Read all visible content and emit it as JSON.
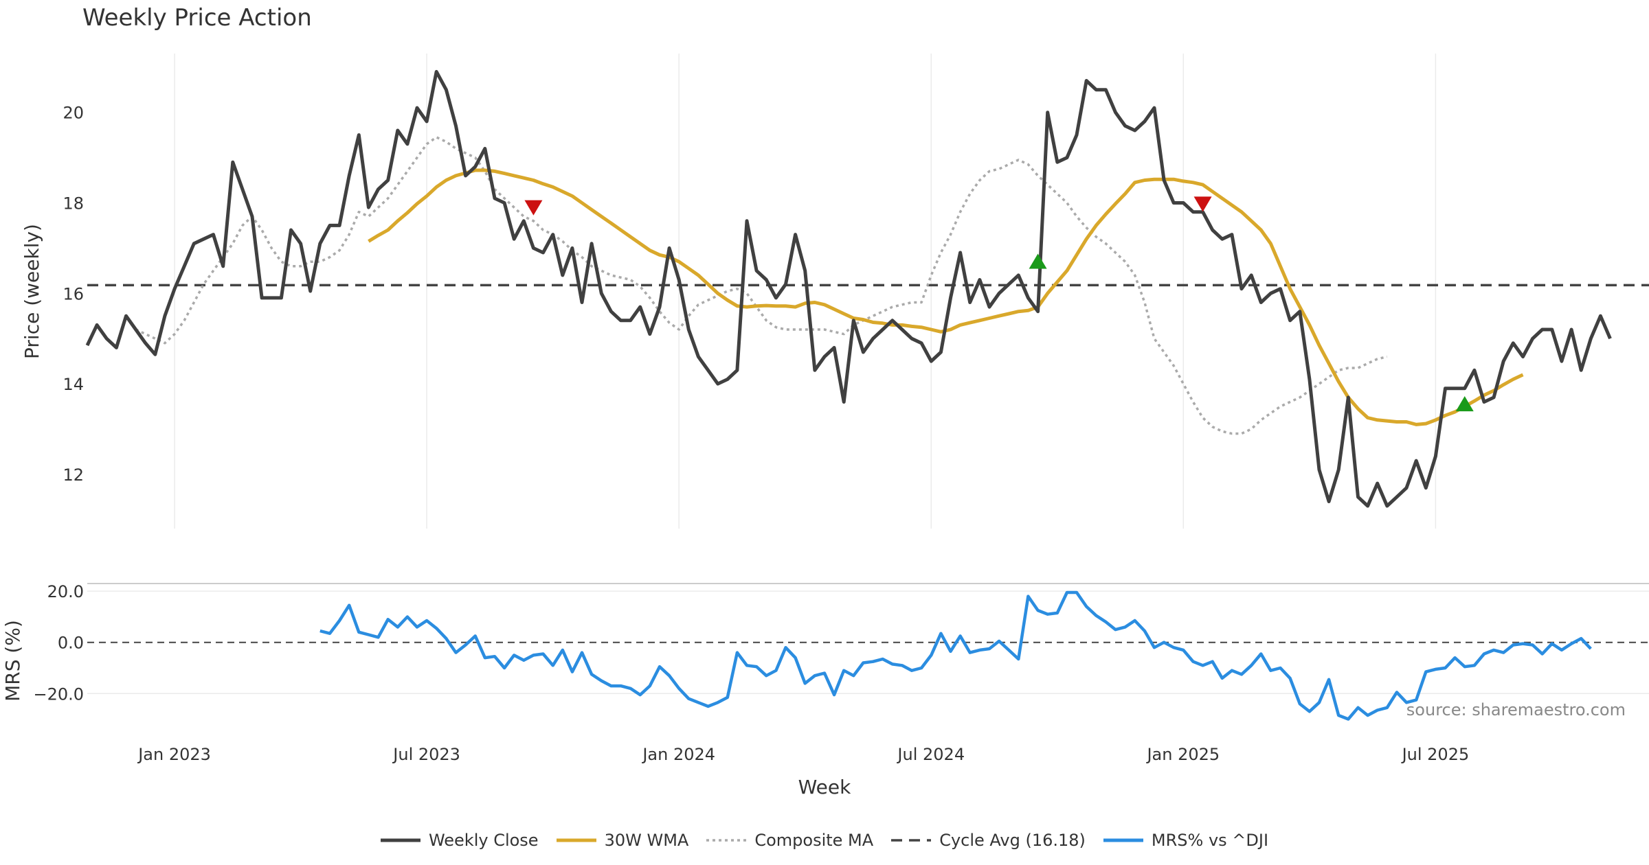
{
  "chart_data": {
    "type": "line",
    "title": "Weekly Price Action",
    "panels": {
      "price": {
        "ylabel": "Price (weekly)",
        "ylim": [
          10.8,
          21.3
        ],
        "yticks": [
          "12",
          "14",
          "16",
          "18",
          "20"
        ],
        "ytick_values": [
          12,
          14,
          16,
          18,
          20
        ]
      },
      "mrs": {
        "ylabel": "MRS (%)",
        "ylim": [
          -32,
          23
        ],
        "yticks": [
          "20.0",
          "0.0",
          "−20.0"
        ],
        "ytick_values": [
          20,
          0,
          -20
        ]
      }
    },
    "xlabel": "Week",
    "x_start_week": 0,
    "x_end_week": 161,
    "xticks": [
      "Jan 2023",
      "Jul 2023",
      "Jan 2024",
      "Jul 2024",
      "Jan 2025",
      "Jul 2025"
    ],
    "xtick_weeks": [
      9,
      35,
      61,
      87,
      113,
      139
    ],
    "series": [
      {
        "name": "Weekly Close",
        "color": "#404040",
        "style": "solid",
        "start_week": 0,
        "values": [
          14.85,
          15.3,
          15.0,
          14.8,
          15.5,
          15.2,
          14.9,
          14.65,
          15.5,
          16.1,
          16.6,
          17.1,
          17.2,
          17.3,
          16.6,
          18.9,
          18.3,
          17.7,
          15.9,
          15.9,
          15.9,
          17.4,
          17.1,
          16.05,
          17.1,
          17.5,
          17.5,
          18.6,
          19.5,
          17.9,
          18.3,
          18.5,
          19.6,
          19.3,
          20.1,
          19.8,
          20.9,
          20.5,
          19.7,
          18.6,
          18.8,
          19.2,
          18.1,
          18.0,
          17.2,
          17.6,
          17.0,
          16.9,
          17.3,
          16.4,
          17.0,
          15.8,
          17.1,
          16.0,
          15.6,
          15.4,
          15.4,
          15.7,
          15.1,
          15.7,
          17.0,
          16.3,
          15.2,
          14.6,
          14.3,
          14.0,
          14.1,
          14.3,
          17.6,
          16.5,
          16.3,
          15.9,
          16.2,
          17.3,
          16.5,
          14.3,
          14.6,
          14.8,
          13.6,
          15.4,
          14.7,
          15.0,
          15.2,
          15.4,
          15.2,
          15.0,
          14.9,
          14.5,
          14.7,
          15.9,
          16.9,
          15.8,
          16.3,
          15.7,
          16.0,
          16.2,
          16.4,
          15.9,
          15.6,
          20.0,
          18.9,
          19.0,
          19.5,
          20.7,
          20.5,
          20.5,
          20.0,
          19.7,
          19.6,
          19.8,
          20.1,
          18.5,
          18.0,
          18.0,
          17.8,
          17.8,
          17.4,
          17.2,
          17.3,
          16.1,
          16.4,
          15.8,
          16.0,
          16.1,
          15.4,
          15.6,
          14.1,
          12.1,
          11.4,
          12.1,
          13.7,
          11.5,
          11.3,
          11.8,
          11.3,
          11.5,
          11.7,
          12.3,
          11.7,
          12.4,
          13.9,
          13.9,
          13.9,
          14.3,
          13.6,
          13.7,
          14.5,
          14.9,
          14.6,
          15.0,
          15.2,
          15.2,
          14.5,
          15.2,
          14.3,
          15.0,
          15.5,
          15.0
        ]
      },
      {
        "name": "30W WMA",
        "color": "#d9a82b",
        "style": "solid",
        "start_week": 29,
        "values": [
          17.15,
          17.28,
          17.4,
          17.6,
          17.78,
          17.98,
          18.15,
          18.35,
          18.5,
          18.6,
          18.66,
          18.72,
          18.72,
          18.7,
          18.65,
          18.6,
          18.55,
          18.5,
          18.42,
          18.35,
          18.25,
          18.15,
          18.0,
          17.85,
          17.7,
          17.55,
          17.4,
          17.25,
          17.1,
          16.95,
          16.85,
          16.8,
          16.7,
          16.55,
          16.4,
          16.2,
          16.0,
          15.85,
          15.72,
          15.7,
          15.72,
          15.73,
          15.72,
          15.72,
          15.7,
          15.78,
          15.8,
          15.75,
          15.65,
          15.55,
          15.45,
          15.42,
          15.36,
          15.34,
          15.3,
          15.3,
          15.27,
          15.25,
          15.2,
          15.15,
          15.2,
          15.3,
          15.35,
          15.4,
          15.45,
          15.5,
          15.55,
          15.6,
          15.62,
          15.7,
          16.0,
          16.25,
          16.5,
          16.85,
          17.2,
          17.5,
          17.75,
          17.98,
          18.2,
          18.45,
          18.5,
          18.52,
          18.52,
          18.52,
          18.48,
          18.45,
          18.4,
          18.25,
          18.1,
          17.95,
          17.8,
          17.6,
          17.4,
          17.1,
          16.6,
          16.1,
          15.7,
          15.3,
          14.85,
          14.45,
          14.05,
          13.7,
          13.45,
          13.25,
          13.2,
          13.18,
          13.16,
          13.16,
          13.1,
          13.12,
          13.2,
          13.3,
          13.38,
          13.5,
          13.62,
          13.75,
          13.85,
          13.98,
          14.1,
          14.2
        ]
      },
      {
        "name": "Composite MA",
        "color": "#aaaaaa",
        "style": "dotted",
        "start_week": 5,
        "values": [
          15.2,
          15.1,
          15.0,
          14.9,
          15.1,
          15.4,
          15.8,
          16.2,
          16.5,
          16.8,
          17.1,
          17.5,
          17.7,
          17.4,
          17.0,
          16.7,
          16.6,
          16.6,
          16.7,
          16.7,
          16.8,
          16.95,
          17.3,
          17.8,
          17.7,
          17.9,
          18.1,
          18.4,
          18.7,
          19.0,
          19.3,
          19.45,
          19.35,
          19.2,
          19.1,
          19.0,
          18.7,
          18.3,
          18.1,
          17.9,
          17.7,
          17.6,
          17.4,
          17.3,
          17.15,
          16.95,
          16.8,
          16.6,
          16.5,
          16.4,
          16.35,
          16.3,
          16.15,
          15.9,
          15.6,
          15.35,
          15.2,
          15.5,
          15.75,
          15.85,
          15.95,
          16.05,
          16.1,
          16.0,
          15.7,
          15.4,
          15.25,
          15.2,
          15.2,
          15.2,
          15.2,
          15.2,
          15.15,
          15.1,
          15.3,
          15.4,
          15.5,
          15.6,
          15.7,
          15.75,
          15.8,
          15.8,
          16.4,
          16.9,
          17.3,
          17.8,
          18.2,
          18.5,
          18.7,
          18.75,
          18.85,
          18.95,
          18.85,
          18.6,
          18.4,
          18.2,
          18.0,
          17.7,
          17.45,
          17.25,
          17.1,
          16.9,
          16.7,
          16.4,
          15.8,
          15.0,
          14.7,
          14.4,
          14.0,
          13.6,
          13.25,
          13.05,
          12.95,
          12.9,
          12.9,
          13.0,
          13.2,
          13.35,
          13.5,
          13.6,
          13.7,
          13.85,
          14.0,
          14.15,
          14.3,
          14.35,
          14.35,
          14.45,
          14.55,
          14.6
        ]
      },
      {
        "name": "Cycle Avg (16.18)",
        "color": "#444444",
        "style": "dashed",
        "constant": 16.18
      },
      {
        "name": "MRS% vs ^DJI",
        "color": "#2b8de0",
        "style": "solid",
        "panel": "mrs",
        "start_week": 24,
        "values": [
          4.5,
          3.5,
          8.5,
          14.5,
          4.0,
          3.0,
          2.0,
          9.0,
          6.0,
          10.0,
          6.0,
          8.5,
          5.5,
          1.5,
          -4.0,
          -1.0,
          2.5,
          -6.0,
          -5.5,
          -10.0,
          -5.0,
          -7.0,
          -5.0,
          -4.5,
          -9.0,
          -3.0,
          -11.5,
          -4.0,
          -12.5,
          -15.0,
          -17.0,
          -17.0,
          -18.0,
          -20.5,
          -17.0,
          -9.5,
          -13.0,
          -18.0,
          -22.0,
          -23.5,
          -25.0,
          -23.5,
          -21.5,
          -4.0,
          -9.0,
          -9.5,
          -13.0,
          -11.0,
          -2.0,
          -6.0,
          -16.0,
          -13.0,
          -12.0,
          -20.5,
          -11.0,
          -13.0,
          -8.0,
          -7.5,
          -6.5,
          -8.5,
          -9.0,
          -11.0,
          -10.0,
          -5.0,
          3.5,
          -3.5,
          2.5,
          -4.0,
          -3.0,
          -2.5,
          0.5,
          -3.0,
          -6.5,
          18.0,
          12.5,
          11.0,
          11.5,
          19.5,
          19.5,
          14.0,
          10.5,
          8.0,
          5.0,
          6.0,
          8.5,
          4.5,
          -2.0,
          0.0,
          -2.0,
          -3.0,
          -7.5,
          -9.0,
          -7.5,
          -14.0,
          -11.0,
          -12.5,
          -9.0,
          -4.5,
          -11.0,
          -10.0,
          -14.0,
          -24.0,
          -27.0,
          -23.5,
          -14.5,
          -28.5,
          -30.0,
          -25.5,
          -28.5,
          -26.5,
          -25.5,
          -19.5,
          -23.5,
          -22.5,
          -11.5,
          -10.5,
          -10.0,
          -6.0,
          -9.5,
          -9.0,
          -4.5,
          -3.0,
          -4.0,
          -1.0,
          -0.5,
          -1.0,
          -4.5,
          -0.5,
          -3.0,
          -0.5,
          1.5,
          -2.5
        ]
      }
    ],
    "markers": [
      {
        "type": "sell",
        "symbol": "down-triangle",
        "color": "#cc1111",
        "week": 46,
        "value": 17.9
      },
      {
        "type": "buy",
        "symbol": "up-triangle",
        "color": "#1a9a1a",
        "week": 98,
        "value": 16.7
      },
      {
        "type": "sell",
        "symbol": "down-triangle",
        "color": "#cc1111",
        "week": 115,
        "value": 17.98
      },
      {
        "type": "buy",
        "symbol": "up-triangle",
        "color": "#1a9a1a",
        "week": 142,
        "value": 13.55
      }
    ],
    "legend_position": "bottom-center",
    "source": "source: sharemaestro.com"
  }
}
